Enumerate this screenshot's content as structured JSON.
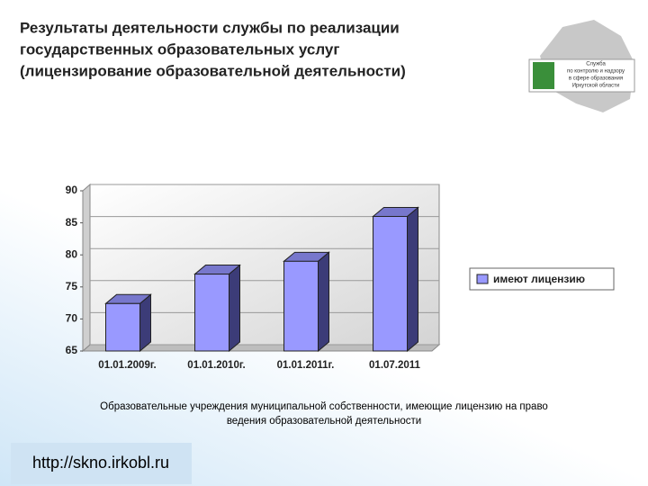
{
  "chart_data": {
    "type": "bar3d",
    "title": [
      "Результаты деятельности службы по реализации",
      "государственных образовательных услуг",
      "(лицензирование образовательной деятельности)"
    ],
    "categories": [
      "01.01.2009г.",
      "01.01.2010г.",
      "01.01.2011г.",
      "01.07.2011"
    ],
    "series": [
      {
        "name": "имеют лицензию",
        "color": "#9999ff",
        "values": [
          72.4,
          77,
          79,
          86
        ]
      }
    ],
    "ylim": [
      65,
      90
    ],
    "yticks": [
      65,
      70,
      75,
      80,
      85,
      90
    ],
    "grid": true,
    "legend": "right",
    "caption": [
      "Образовательные учреждения муниципальной собственности, имеющие лицензию на право",
      "ведения образовательной деятельности"
    ]
  },
  "logo": {
    "lines": [
      "Служба",
      "по контролю и надзору",
      "в сфере образования",
      "Иркутской области"
    ]
  },
  "footer": {
    "url": "http://skno.irkobl.ru"
  }
}
